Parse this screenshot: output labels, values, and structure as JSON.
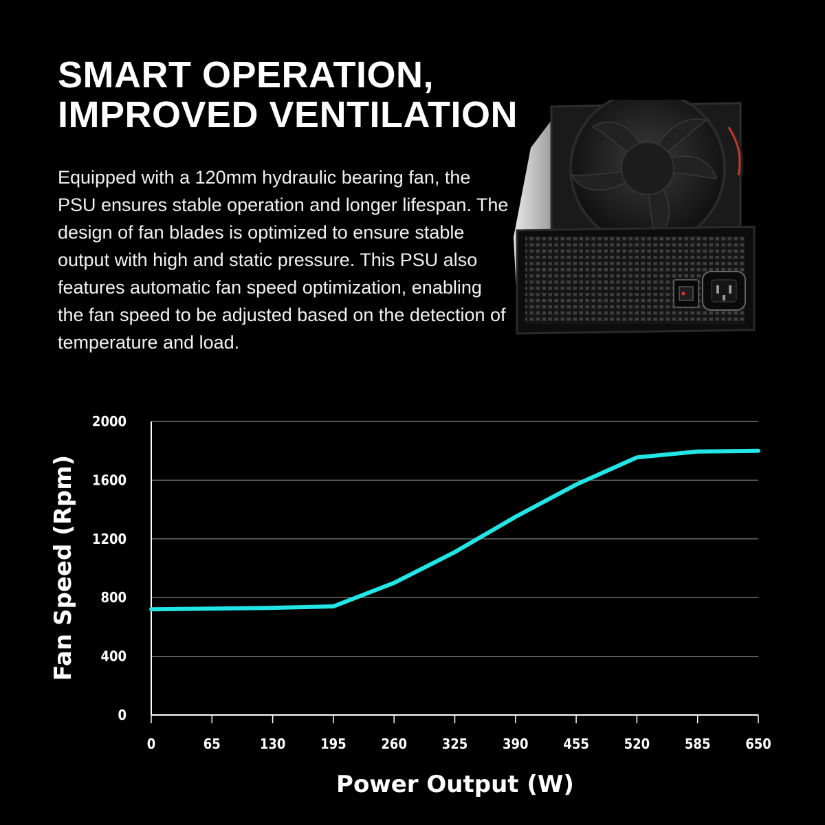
{
  "headline": {
    "line1": "SMART OPERATION,",
    "line2": "IMPROVED VENTILATION"
  },
  "description": "Equipped with a 120mm hydraulic bearing fan, the PSU ensures stable operation and longer lifespan. The design of fan blades is optimized to ensure stable output with high and static pressure. This PSU also features automatic fan speed optimization, enabling the fan speed to be adjusted based on the detection of temperature and load.",
  "product_image": {
    "icon": "psu-with-fan-image"
  },
  "chart_data": {
    "type": "line",
    "xlabel": "Power Output (W)",
    "ylabel": "Fan Speed (Rpm)",
    "xlim": [
      0,
      650
    ],
    "ylim": [
      0,
      2000
    ],
    "x_ticks": [
      0,
      65,
      130,
      195,
      260,
      325,
      390,
      455,
      520,
      585,
      650
    ],
    "y_ticks": [
      0,
      400,
      800,
      1200,
      1600,
      2000
    ],
    "grid": "horizontal",
    "line_color": "#22e6e6",
    "series": [
      {
        "x": [
          0,
          65,
          130,
          195,
          260,
          325,
          390,
          455,
          520,
          585,
          650
        ],
        "y": [
          720,
          725,
          730,
          740,
          900,
          1110,
          1350,
          1570,
          1755,
          1795,
          1800
        ]
      }
    ]
  }
}
